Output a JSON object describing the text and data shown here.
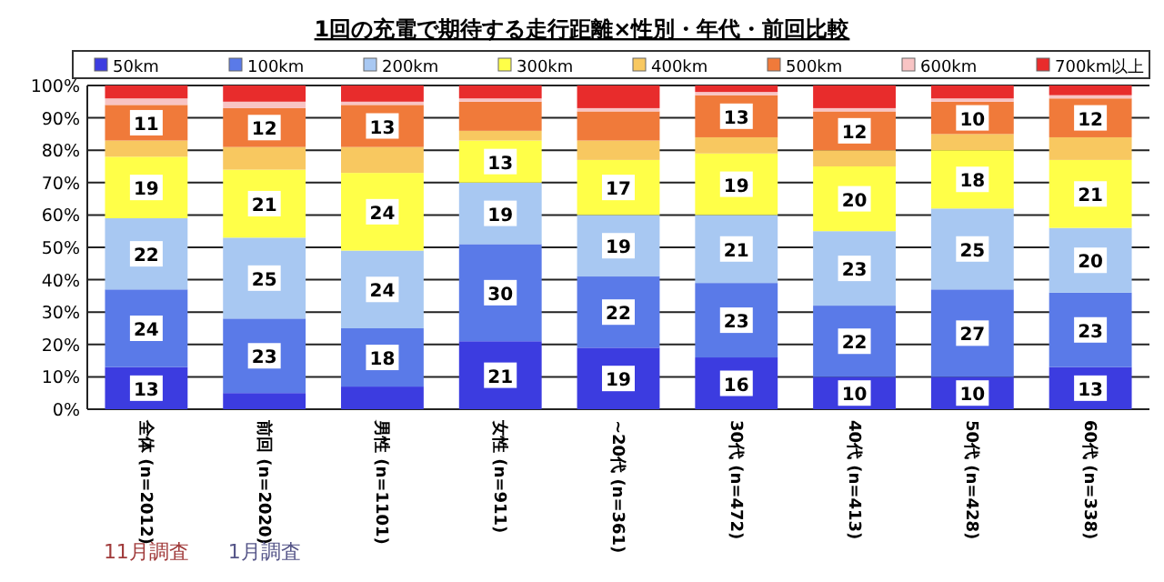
{
  "chart_data": {
    "type": "bar",
    "stacked": true,
    "title": "1回の充電で期待する走行距離×性別・年代・前回比較",
    "categories": [
      "全体 (n=2012)",
      "前回 (n=2020)",
      "男性 (n=1101)",
      "女性 (n=911)",
      "~20代 (n=361)",
      "30代 (n=472)",
      "40代 (n=413)",
      "50代 (n=428)",
      "60代 (n=338)"
    ],
    "series": [
      {
        "name": "50km",
        "color": "#3c3ce0",
        "values": [
          13,
          5,
          7,
          21,
          19,
          16,
          10,
          10,
          13
        ],
        "value_labels": [
          "13",
          null,
          null,
          "21",
          "19",
          "16",
          "10",
          "10",
          "13"
        ]
      },
      {
        "name": "100km",
        "color": "#5a7ae8",
        "values": [
          24,
          23,
          18,
          30,
          22,
          23,
          22,
          27,
          23
        ],
        "value_labels": [
          "24",
          "23",
          "18",
          "30",
          "22",
          "23",
          "22",
          "27",
          "23"
        ]
      },
      {
        "name": "200km",
        "color": "#a8c8f2",
        "values": [
          22,
          25,
          24,
          19,
          19,
          21,
          23,
          25,
          20
        ],
        "value_labels": [
          "22",
          "25",
          "24",
          "19",
          "19",
          "21",
          "23",
          "25",
          "20"
        ]
      },
      {
        "name": "300km",
        "color": "#ffff48",
        "values": [
          19,
          21,
          24,
          13,
          17,
          19,
          20,
          18,
          21
        ],
        "value_labels": [
          "19",
          "21",
          "24",
          "13",
          "17",
          "19",
          "20",
          "18",
          "21"
        ]
      },
      {
        "name": "400km",
        "color": "#f8c860",
        "values": [
          5,
          7,
          8,
          3,
          6,
          5,
          5,
          5,
          7
        ]
      },
      {
        "name": "500km",
        "color": "#f07a3a",
        "values": [
          11,
          12,
          13,
          9,
          9,
          13,
          12,
          10,
          12
        ],
        "value_labels": [
          "11",
          "12",
          "13",
          null,
          null,
          "13",
          "12",
          "10",
          "12"
        ]
      },
      {
        "name": "600km",
        "color": "#f8c4c4",
        "values": [
          2,
          2,
          1,
          1,
          1,
          1,
          1,
          1,
          1
        ]
      },
      {
        "name": "700km以上",
        "color": "#e82c2c",
        "values": [
          4,
          5,
          5,
          4,
          7,
          2,
          7,
          4,
          3
        ]
      }
    ],
    "ylim": [
      0,
      100
    ],
    "yticks": [
      {
        "value": 0,
        "label": "0%"
      },
      {
        "value": 10,
        "label": "10%"
      },
      {
        "value": 20,
        "label": "20%"
      },
      {
        "value": 30,
        "label": "30%"
      },
      {
        "value": 40,
        "label": "40%"
      },
      {
        "value": 50,
        "label": "50%"
      },
      {
        "value": 60,
        "label": "60%"
      },
      {
        "value": 70,
        "label": "70%"
      },
      {
        "value": 80,
        "label": "80%"
      },
      {
        "value": 90,
        "label": "90%"
      },
      {
        "value": 100,
        "label": "100%"
      }
    ],
    "grid": "y",
    "legend": "top",
    "annotations": [
      "11月調査",
      "1月調査"
    ]
  }
}
